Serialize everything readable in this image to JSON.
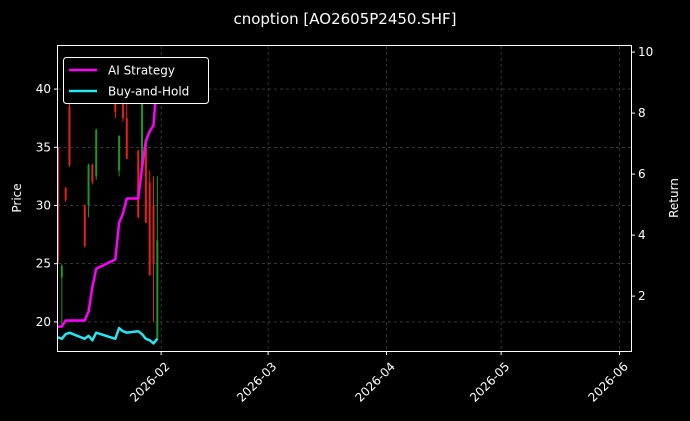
{
  "chart_data": {
    "type": "line",
    "title": "cnoption [AO2605P2450.SHF]",
    "ylabel_left": "Price",
    "ylabel_right": "Return",
    "xlabel": "",
    "grid": true,
    "legend_position": "top-left",
    "colors": {
      "background": "#000000",
      "up_candle": "#1a9a1a",
      "down_candle": "#e8201a",
      "strategy": "#ff00ff",
      "buy_hold": "#27e6f0",
      "grid": "#555555",
      "text": "#ffffff"
    },
    "x_ticks": [
      "2026-02",
      "2026-03",
      "2026-04",
      "2026-05",
      "2026-06"
    ],
    "x_range": [
      "2026-01-05",
      "2026-06-04"
    ],
    "y_left": {
      "range": [
        17.5,
        43.7
      ],
      "ticks": [
        20,
        25,
        30,
        35,
        40
      ]
    },
    "y_right": {
      "range": [
        0.2,
        10.2
      ],
      "ticks": [
        2,
        4,
        6,
        8,
        10
      ]
    },
    "candles": [
      {
        "date": "2026-01-05",
        "open": 35.0,
        "close": 25.2,
        "high": 35.0,
        "low": 25.0
      },
      {
        "date": "2026-01-06",
        "open": 23.8,
        "close": 24.8,
        "high": 25.0,
        "low": 19.5
      },
      {
        "date": "2026-01-07",
        "open": 31.5,
        "close": 30.5,
        "high": 31.6,
        "low": 30.3
      },
      {
        "date": "2026-01-08",
        "open": 38.5,
        "close": 33.5,
        "high": 41.5,
        "low": 33.3
      },
      {
        "date": "2026-01-12",
        "open": 30.0,
        "close": 26.5,
        "high": 30.1,
        "low": 26.4
      },
      {
        "date": "2026-01-13",
        "open": 30.0,
        "close": 33.5,
        "high": 33.6,
        "low": 29.0
      },
      {
        "date": "2026-01-14",
        "open": 33.5,
        "close": 32.0,
        "high": 33.6,
        "low": 31.8
      },
      {
        "date": "2026-01-15",
        "open": 32.5,
        "close": 36.5,
        "high": 36.6,
        "low": 32.2
      },
      {
        "date": "2026-01-20",
        "open": 39.0,
        "close": 38.0,
        "high": 41.0,
        "low": 37.5
      },
      {
        "date": "2026-01-21",
        "open": 33.0,
        "close": 36.0,
        "high": 36.0,
        "low": 32.5
      },
      {
        "date": "2026-01-22",
        "open": 40.5,
        "close": 37.5,
        "high": 40.8,
        "low": 37.2
      },
      {
        "date": "2026-01-23",
        "open": 37.5,
        "close": 34.0,
        "high": 40.2,
        "low": 34.0
      },
      {
        "date": "2026-01-26",
        "open": 34.7,
        "close": 29.0,
        "high": 34.8,
        "low": 28.9
      },
      {
        "date": "2026-01-27",
        "open": 33.0,
        "close": 39.0,
        "high": 39.0,
        "low": 32.8
      },
      {
        "date": "2026-01-28",
        "open": 35.5,
        "close": 28.5,
        "high": 35.5,
        "low": 28.5
      },
      {
        "date": "2026-01-29",
        "open": 32.0,
        "close": 24.0,
        "high": 33.0,
        "low": 24.0
      },
      {
        "date": "2026-01-30",
        "open": 30.0,
        "close": 25.0,
        "high": 32.5,
        "low": 20.0
      },
      {
        "date": "2026-01-31",
        "open": 18.5,
        "close": 27.0,
        "high": 32.5,
        "low": 18.5
      }
    ],
    "series": [
      {
        "name": "AI Strategy",
        "dates": [
          "2026-01-05",
          "2026-01-06",
          "2026-01-07",
          "2026-01-08",
          "2026-01-12",
          "2026-01-13",
          "2026-01-14",
          "2026-01-15",
          "2026-01-20",
          "2026-01-21",
          "2026-01-22",
          "2026-01-23",
          "2026-01-26",
          "2026-01-27",
          "2026-01-28",
          "2026-01-29",
          "2026-01-30",
          "2026-01-31"
        ],
        "values": [
          1.0,
          1.0,
          1.2,
          1.2,
          1.2,
          1.5,
          2.3,
          2.9,
          3.2,
          4.4,
          4.7,
          5.2,
          5.2,
          6.2,
          7.1,
          7.4,
          7.6,
          9.2
        ]
      },
      {
        "name": "Buy-and-Hold",
        "dates": [
          "2026-01-05",
          "2026-01-06",
          "2026-01-07",
          "2026-01-08",
          "2026-01-12",
          "2026-01-13",
          "2026-01-14",
          "2026-01-15",
          "2026-01-20",
          "2026-01-21",
          "2026-01-22",
          "2026-01-23",
          "2026-01-26",
          "2026-01-27",
          "2026-01-28",
          "2026-01-29",
          "2026-01-30",
          "2026-01-31"
        ],
        "values": [
          0.65,
          0.6,
          0.75,
          0.8,
          0.6,
          0.7,
          0.55,
          0.8,
          0.6,
          0.95,
          0.85,
          0.8,
          0.85,
          0.75,
          0.6,
          0.55,
          0.45,
          0.6
        ]
      }
    ]
  }
}
